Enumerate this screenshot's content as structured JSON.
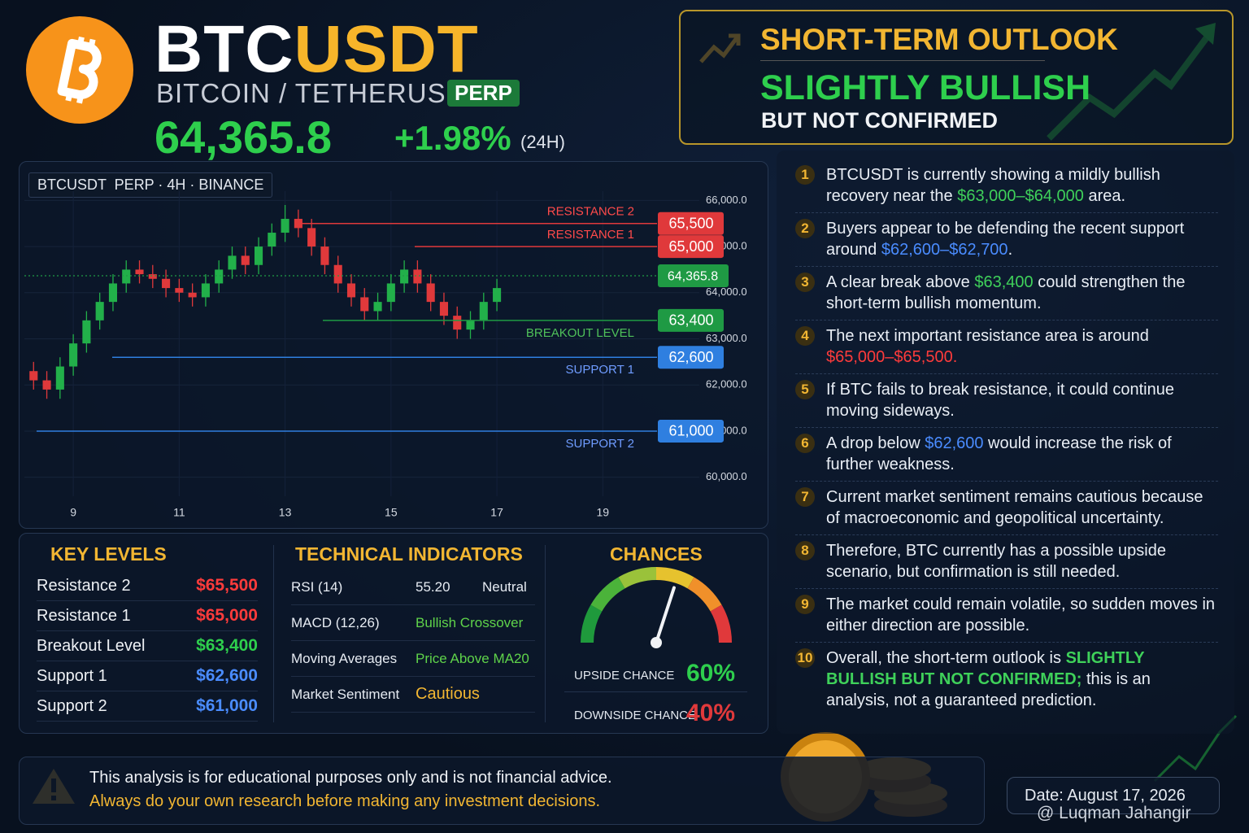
{
  "header": {
    "symbol_a": "BTC",
    "symbol_b": "USDT",
    "pair_name": "BITCOIN / TETHERUS",
    "badge": "PERP",
    "price": "64,365.8",
    "change": "+1.98%",
    "change_period": "(24H)"
  },
  "outlook": {
    "heading": "SHORT-TERM OUTLOOK",
    "verdict": "SLIGHTLY BULLISH",
    "qualifier": "BUT NOT CONFIRMED"
  },
  "chart_data": {
    "type": "candlestick",
    "title": "BTCUSDT  PERP · 4H · BINANCE",
    "x": [
      8.25,
      8.5,
      8.75,
      9,
      9.25,
      9.5,
      9.75,
      10,
      10.25,
      10.5,
      10.75,
      11,
      11.25,
      11.5,
      11.75,
      12,
      12.25,
      12.5,
      12.75,
      13,
      13.25,
      13.5,
      13.75,
      14,
      14.25,
      14.5,
      14.75,
      15,
      15.25,
      15.5,
      15.75,
      16,
      16.25,
      16.5,
      16.75,
      17
    ],
    "open": [
      62300,
      62100,
      61900,
      62400,
      62900,
      63400,
      63800,
      64200,
      64500,
      64400,
      64300,
      64100,
      64000,
      63900,
      64200,
      64500,
      64800,
      64600,
      65000,
      65300,
      65600,
      65400,
      65000,
      64600,
      64200,
      63900,
      63600,
      63800,
      64200,
      64500,
      64200,
      63800,
      63500,
      63200,
      63400,
      63800
    ],
    "high": [
      62500,
      62300,
      62600,
      63100,
      63600,
      64000,
      64400,
      64700,
      64700,
      64600,
      64500,
      64300,
      64200,
      64400,
      64700,
      65000,
      65000,
      65200,
      65500,
      65900,
      65800,
      65600,
      65200,
      64800,
      64400,
      64100,
      64000,
      64400,
      64700,
      64700,
      64400,
      64000,
      63700,
      63600,
      64000,
      64300
    ],
    "low": [
      61900,
      61700,
      61700,
      62200,
      62700,
      63200,
      63600,
      64000,
      64200,
      64100,
      63900,
      63800,
      63700,
      63700,
      64000,
      64300,
      64400,
      64400,
      64800,
      65100,
      65200,
      64800,
      64400,
      64000,
      63700,
      63400,
      63400,
      63600,
      64000,
      64000,
      63600,
      63300,
      63000,
      63000,
      63200,
      63600
    ],
    "close": [
      62100,
      61900,
      62400,
      62900,
      63400,
      63800,
      64200,
      64500,
      64400,
      64300,
      64100,
      64000,
      63900,
      64200,
      64500,
      64800,
      64600,
      65000,
      65300,
      65600,
      65400,
      65000,
      64600,
      64200,
      63900,
      63600,
      63800,
      64200,
      64500,
      64200,
      63800,
      63500,
      63200,
      63400,
      63800,
      64100
    ],
    "up_color": "#22b04a",
    "down_color": "#e0393b",
    "xlim": [
      8,
      20.5
    ],
    "xticks": [
      9,
      11,
      13,
      15,
      17,
      19
    ],
    "ylim": [
      59800,
      66200
    ],
    "yticks": [
      {
        "value": 60000,
        "label": "60,000.0"
      },
      {
        "value": 61000,
        "label": "61,000.0"
      },
      {
        "value": 62000,
        "label": "62,000.0"
      },
      {
        "value": 63000,
        "label": "63,000.0"
      },
      {
        "value": 64000,
        "label": "64,000.0"
      },
      {
        "value": 65000,
        "label": "65,000.0"
      },
      {
        "value": 66000,
        "label": "66,000.0"
      }
    ],
    "grid": true,
    "levels": [
      {
        "name": "RESISTANCE 2",
        "value": 65500,
        "value_label": "65,500",
        "color": "#e0393b"
      },
      {
        "name": "RESISTANCE 1",
        "value": 65000,
        "value_label": "65,000",
        "color": "#e0393b"
      },
      {
        "name": "BREAKOUT LEVEL",
        "value": 63400,
        "value_label": "63,400",
        "color": "#1f9a44"
      },
      {
        "name": "SUPPORT 1",
        "value": 62600,
        "value_label": "62,600",
        "color": "#2f7fe0"
      },
      {
        "name": "SUPPORT 2",
        "value": 61000,
        "value_label": "61,000",
        "color": "#2f7fe0"
      }
    ],
    "last_price": {
      "value": 64365.8,
      "value_label": "64,365.8",
      "color": "#1f9a44"
    }
  },
  "key_levels": {
    "title": "KEY LEVELS",
    "rows": [
      {
        "label": "Resistance 2",
        "value": "$65,500",
        "color": "#ff3b3b"
      },
      {
        "label": "Resistance 1",
        "value": "$65,000",
        "color": "#ff3b3b"
      },
      {
        "label": "Breakout Level",
        "value": "$63,400",
        "color": "#2ecf4d"
      },
      {
        "label": "Support 1",
        "value": "$62,600",
        "color": "#4a8cff"
      },
      {
        "label": "Support 2",
        "value": "$61,000",
        "color": "#4a8cff"
      }
    ]
  },
  "indicators": {
    "title": "TECHNICAL INDICATORS",
    "rows": [
      {
        "name": "RSI (14)",
        "value": "55.20",
        "status": "Neutral",
        "color": "#e6ebf2"
      },
      {
        "name": "MACD (12,26)",
        "status": "Bullish Crossover",
        "color": "#5fd34a"
      },
      {
        "name": "Moving Averages",
        "status": "Price Above MA20",
        "color": "#5fd34a"
      },
      {
        "name": "Market Sentiment",
        "status": "Cautious",
        "color": "#f2b632"
      }
    ]
  },
  "chances": {
    "title": "CHANCES",
    "scale": [
      0,
      100
    ],
    "upside_label": "UPSIDE CHANCE",
    "upside": 60,
    "upside_text": "60%",
    "downside_label": "DOWNSIDE CHANCE",
    "downside": 40,
    "downside_text": "40%"
  },
  "points": [
    {
      "n": 1,
      "segments": [
        {
          "text": "BTCUSDT is currently showing a mildly bullish recovery near the "
        },
        {
          "text": "$63,000–$64,000",
          "color": "#3fd15a"
        },
        {
          "text": " area."
        }
      ]
    },
    {
      "n": 2,
      "segments": [
        {
          "text": "Buyers appear to be defending the recent support around "
        },
        {
          "text": "$62,600–$62,700",
          "color": "#4a8cff"
        },
        {
          "text": "."
        }
      ]
    },
    {
      "n": 3,
      "segments": [
        {
          "text": "A clear break above "
        },
        {
          "text": "$63,400",
          "color": "#3fd15a"
        },
        {
          "text": " could strengthen the short-term bullish momentum."
        }
      ]
    },
    {
      "n": 4,
      "segments": [
        {
          "text": "The next important resistance area is around "
        },
        {
          "text": "$65,000–$65,500.",
          "color": "#ff3b3b"
        }
      ]
    },
    {
      "n": 5,
      "segments": [
        {
          "text": "If BTC fails to break resistance, it could continue moving sideways."
        }
      ]
    },
    {
      "n": 6,
      "segments": [
        {
          "text": "A drop below "
        },
        {
          "text": "$62,600",
          "color": "#4a8cff"
        },
        {
          "text": " would increase the risk of further weakness."
        }
      ]
    },
    {
      "n": 7,
      "segments": [
        {
          "text": "Current market sentiment remains cautious because of macroeconomic and geopolitical uncertainty."
        }
      ]
    },
    {
      "n": 8,
      "segments": [
        {
          "text": "Therefore, BTC currently has a possible upside scenario, but confirmation is still needed."
        }
      ]
    },
    {
      "n": 9,
      "segments": [
        {
          "text": "The market could remain volatile, so sudden moves in either direction are possible."
        }
      ]
    },
    {
      "n": 10,
      "segments": [
        {
          "text": "Overall, the short-term outlook is "
        },
        {
          "text": "SLIGHTLY BULLISH BUT NOT CONFIRMED;",
          "color": "#3fd15a",
          "bold": true
        },
        {
          "text": " this is an analysis, not a guaranteed prediction."
        }
      ]
    }
  ],
  "disclaimer": {
    "line1": "This analysis is for educational purposes only and is not financial advice.",
    "line2": "Always do your own research before making any investment decisions."
  },
  "date": "Date: August 17, 2026",
  "watermark": "@ Luqman Jahangir"
}
